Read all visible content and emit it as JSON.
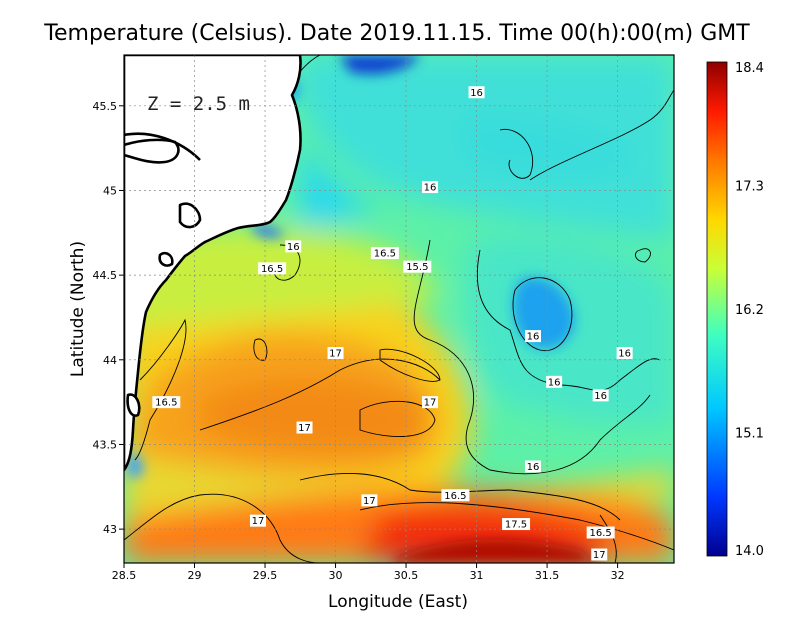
{
  "title": "Temperature (Celsius). Date 2019.11.15. Time 00(h):00(m) GMT",
  "depth_label": "Z = 2.5 m",
  "x_axis": {
    "label": "Longitude (East)",
    "range": [
      28.5,
      32.4
    ],
    "ticks": [
      {
        "value": 28.5,
        "label": "28.5"
      },
      {
        "value": 29,
        "label": "29"
      },
      {
        "value": 29.5,
        "label": "29.5"
      },
      {
        "value": 30,
        "label": "30"
      },
      {
        "value": 30.5,
        "label": "30.5"
      },
      {
        "value": 31,
        "label": "31"
      },
      {
        "value": 31.5,
        "label": "31.5"
      },
      {
        "value": 32,
        "label": "32"
      }
    ]
  },
  "y_axis": {
    "label": "Latitude (North)",
    "range": [
      42.8,
      45.8
    ],
    "ticks": [
      {
        "value": 43,
        "label": "43"
      },
      {
        "value": 43.5,
        "label": "43.5"
      },
      {
        "value": 44,
        "label": "44"
      },
      {
        "value": 44.5,
        "label": "44.5"
      },
      {
        "value": 45,
        "label": "45"
      },
      {
        "value": 45.5,
        "label": "45.5"
      }
    ]
  },
  "colorbar": {
    "min": 14.0,
    "max": 18.4,
    "ticks": [
      {
        "value": 18.4,
        "label": "18.4"
      },
      {
        "value": 17.3,
        "label": "17.3"
      },
      {
        "value": 16.2,
        "label": "16.2"
      },
      {
        "value": 15.1,
        "label": "15.1"
      },
      {
        "value": 14.0,
        "label": "14.0"
      }
    ],
    "colors": [
      "#00008f",
      "#0038ff",
      "#00c8ff",
      "#40ffbf",
      "#c8ff38",
      "#ffd800",
      "#ff7800",
      "#ff1a00",
      "#8f0000"
    ]
  },
  "contour_labels": [
    {
      "lon": 31.0,
      "lat": 45.58,
      "label": "16"
    },
    {
      "lon": 30.67,
      "lat": 45.02,
      "label": "16"
    },
    {
      "lon": 29.7,
      "lat": 44.67,
      "label": "16"
    },
    {
      "lon": 30.35,
      "lat": 44.63,
      "label": "16.5"
    },
    {
      "lon": 29.55,
      "lat": 44.54,
      "label": "16.5"
    },
    {
      "lon": 30.58,
      "lat": 44.55,
      "label": "15.5"
    },
    {
      "lon": 31.4,
      "lat": 44.14,
      "label": "16"
    },
    {
      "lon": 30.0,
      "lat": 44.04,
      "label": "17"
    },
    {
      "lon": 32.05,
      "lat": 44.04,
      "label": "16"
    },
    {
      "lon": 31.55,
      "lat": 43.87,
      "label": "16"
    },
    {
      "lon": 31.88,
      "lat": 43.79,
      "label": "16"
    },
    {
      "lon": 28.8,
      "lat": 43.75,
      "label": "16.5"
    },
    {
      "lon": 30.67,
      "lat": 43.75,
      "label": "17"
    },
    {
      "lon": 29.78,
      "lat": 43.6,
      "label": "17"
    },
    {
      "lon": 31.4,
      "lat": 43.37,
      "label": "16"
    },
    {
      "lon": 30.85,
      "lat": 43.2,
      "label": "16.5"
    },
    {
      "lon": 30.24,
      "lat": 43.17,
      "label": "17"
    },
    {
      "lon": 29.45,
      "lat": 43.05,
      "label": "17"
    },
    {
      "lon": 31.28,
      "lat": 43.03,
      "label": "17.5"
    },
    {
      "lon": 31.88,
      "lat": 42.98,
      "label": "16.5"
    },
    {
      "lon": 31.87,
      "lat": 42.85,
      "label": "17"
    }
  ]
}
